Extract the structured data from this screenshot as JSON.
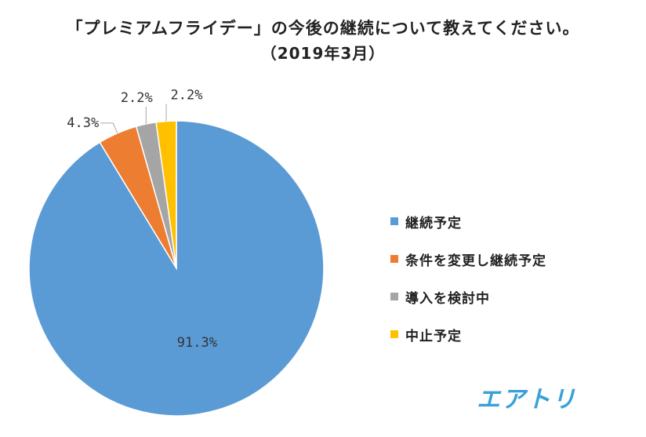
{
  "chart_data": {
    "type": "pie",
    "title": "「プレミアムフライデー」の今後の継続について教えてください。",
    "subtitle": "（2019年3月）",
    "series": [
      {
        "name": "継続予定",
        "value": 91.3,
        "label": "91.3%",
        "color": "#5b9bd5"
      },
      {
        "name": "条件を変更し継続予定",
        "value": 4.3,
        "label": "4.3%",
        "color": "#ed7d31"
      },
      {
        "name": "導入を検討中",
        "value": 2.2,
        "label": "2.2%",
        "color": "#a5a5a5"
      },
      {
        "name": "中止予定",
        "value": 2.2,
        "label": "2.2%",
        "color": "#ffc000"
      }
    ],
    "legend_position": "right"
  },
  "brand": {
    "logo_text": "エアトリ",
    "color": "#3aa0d8"
  }
}
